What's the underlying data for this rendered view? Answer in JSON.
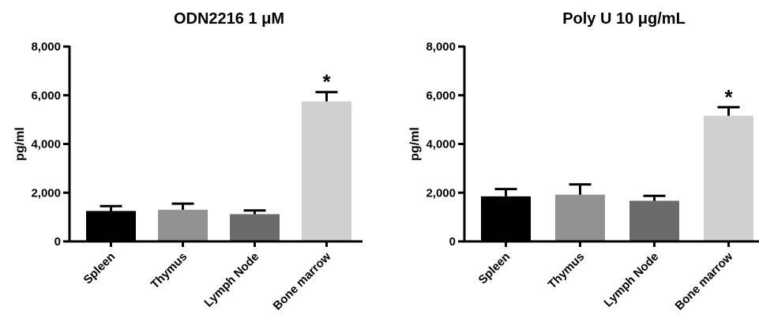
{
  "chart_data": [
    {
      "type": "bar",
      "title": "ODN2216 1 μM",
      "ylabel": "pg/ml",
      "xlabel": "",
      "ylim": [
        0,
        8000
      ],
      "yticks": [
        0,
        2000,
        4000,
        6000,
        8000
      ],
      "ytick_labels": [
        "0",
        "2,000",
        "4,000",
        "6,000",
        "8,000"
      ],
      "categories": [
        "Spleen",
        "Thymus",
        "Lymph Node",
        "Bone marrow"
      ],
      "values": [
        1250,
        1300,
        1120,
        5750
      ],
      "errors": [
        200,
        250,
        150,
        380
      ],
      "significance": [
        "",
        "",
        "",
        "*"
      ],
      "colors": [
        "#000000",
        "#929292",
        "#6b6b6b",
        "#d0d0d0"
      ],
      "grid": false
    },
    {
      "type": "bar",
      "title": "Poly U 10 μg/mL",
      "ylabel": "pg/ml",
      "xlabel": "",
      "ylim": [
        0,
        8000
      ],
      "yticks": [
        0,
        2000,
        4000,
        6000,
        8000
      ],
      "ytick_labels": [
        "0",
        "2,000",
        "4,000",
        "6,000",
        "8,000"
      ],
      "categories": [
        "Spleen",
        "Thymus",
        "Lymph Node",
        "Bone marrow"
      ],
      "values": [
        1850,
        1920,
        1670,
        5160
      ],
      "errors": [
        300,
        420,
        200,
        350
      ],
      "significance": [
        "",
        "",
        "",
        "*"
      ],
      "colors": [
        "#000000",
        "#929292",
        "#6b6b6b",
        "#d0d0d0"
      ],
      "grid": false
    }
  ]
}
